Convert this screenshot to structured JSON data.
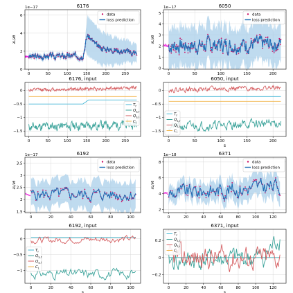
{
  "colors": {
    "data": "#cc1166",
    "data_pre": "#ee22dd",
    "prediction": "#1f6fb5",
    "band": "#a9cfea",
    "Tr": "#45b7d6",
    "Qs_r": "#3ba39a",
    "Qs_i": "#d55d60",
    "Ci": "#f2b64e"
  },
  "chart_data": [
    {
      "type": "line",
      "title": "6176",
      "xlabel": "",
      "ylabel": "∂L/∂θ",
      "scale_label": "1e−17",
      "xlim": [
        -10,
        290
      ],
      "ylim": [
        0,
        6.6
      ],
      "xticks": [
        0,
        50,
        100,
        150,
        200,
        250
      ],
      "yticks": [
        0,
        2,
        4,
        6
      ],
      "legend": {
        "position": "top-right",
        "entries": [
          "data",
          "loss prediction"
        ]
      },
      "grid": true,
      "profile": {
        "n": 280,
        "pre": 10,
        "segments": [
          [
            0,
            1.4
          ],
          [
            140,
            1.5
          ],
          [
            152,
            3.8
          ],
          [
            180,
            2.4
          ],
          [
            280,
            1.8
          ]
        ],
        "noise": 0.25,
        "band": [
          [
            0,
            0.3
          ],
          [
            145,
            0.3
          ],
          [
            152,
            2.2
          ],
          [
            280,
            1.0
          ]
        ],
        "seed": 3
      }
    },
    {
      "type": "line",
      "title": "6050",
      "xlabel": "",
      "ylabel": "∂L/∂θ",
      "scale_label": "1e−17",
      "xlim": [
        -10,
        225
      ],
      "ylim": [
        -0.1,
        5.3
      ],
      "xticks": [
        0,
        50,
        100,
        150,
        200
      ],
      "yticks": [
        0,
        1,
        2,
        3,
        4,
        5
      ],
      "legend": {
        "position": "top-right",
        "entries": [
          "data",
          "loss prediction"
        ]
      },
      "grid": true,
      "profile": {
        "n": 215,
        "pre": 12,
        "segments": [
          [
            0,
            2.0
          ],
          [
            215,
            2.2
          ]
        ],
        "noise": 0.55,
        "band": [
          [
            0,
            1.8
          ],
          [
            215,
            1.8
          ]
        ],
        "seed": 7
      }
    },
    {
      "type": "line",
      "title": "6176, input",
      "xlabel": "",
      "ylabel": "",
      "xlim": [
        -10,
        290
      ],
      "ylim": [
        -1.7,
        0.3
      ],
      "xticks": [
        0,
        50,
        100,
        150,
        200,
        250
      ],
      "yticks": [
        -1.5,
        -1.0,
        -0.5,
        0.0
      ],
      "legend": {
        "position": "center-right",
        "entries": [
          "T_r",
          "Q_{s,r}",
          "Q_{s,i}",
          "C_i"
        ]
      },
      "grid": true,
      "inputs": [
        {
          "name": "T_r",
          "segments": [
            [
              0,
              -0.5
            ],
            [
              140,
              -0.5
            ],
            [
              155,
              -0.35
            ],
            [
              280,
              -0.35
            ]
          ],
          "noise": 0.0,
          "seed": 1
        },
        {
          "name": "Q_{s,r}",
          "segments": [
            [
              0,
              -1.35
            ],
            [
              280,
              -1.25
            ]
          ],
          "noise": 0.13,
          "seed": 11
        },
        {
          "name": "Q_{s,i}",
          "segments": [
            [
              0,
              0.02
            ],
            [
              280,
              0.1
            ]
          ],
          "noise": 0.05,
          "seed": 12
        },
        {
          "name": "C_i",
          "segments": [
            [
              0,
              -0.22
            ],
            [
              280,
              -0.22
            ]
          ],
          "noise": 0.0,
          "seed": 13
        }
      ]
    },
    {
      "type": "line",
      "title": "6050, input",
      "xlabel": "s",
      "ylabel": "",
      "xlim": [
        -10,
        225
      ],
      "ylim": [
        -1.7,
        0.3
      ],
      "xticks": [
        0,
        50,
        100,
        150,
        200
      ],
      "yticks": [
        -1.5,
        -1.0,
        -0.5,
        0.0
      ],
      "legend": {
        "position": "bottom-left",
        "entries": [
          "T_r",
          "Q_{s,r}",
          "Q_{s,i}",
          "C_i"
        ]
      },
      "grid": true,
      "inputs": [
        {
          "name": "T_r",
          "segments": [
            [
              0,
              -0.22
            ],
            [
              215,
              -0.22
            ]
          ],
          "noise": 0.0,
          "seed": 2
        },
        {
          "name": "Q_{s,r}",
          "segments": [
            [
              0,
              -1.35
            ],
            [
              215,
              -1.2
            ]
          ],
          "noise": 0.13,
          "seed": 21
        },
        {
          "name": "Q_{s,i}",
          "segments": [
            [
              0,
              0.03
            ],
            [
              215,
              0.1
            ]
          ],
          "noise": 0.07,
          "seed": 22
        },
        {
          "name": "C_i",
          "segments": [
            [
              0,
              -0.4
            ],
            [
              215,
              -0.4
            ]
          ],
          "noise": 0.0,
          "seed": 23
        }
      ]
    },
    {
      "type": "line",
      "title": "6192",
      "xlabel": "",
      "ylabel": "∂L/∂θ",
      "scale_label": "1e−17",
      "xlim": [
        -6,
        110
      ],
      "ylim": [
        1.45,
        3.75
      ],
      "xticks": [
        0,
        20,
        40,
        60,
        80,
        100
      ],
      "yticks": [
        1.5,
        2.0,
        2.5,
        3.0,
        3.5
      ],
      "legend": {
        "position": "top-right",
        "entries": [
          "data",
          "loss prediction"
        ]
      },
      "grid": true,
      "profile": {
        "n": 105,
        "pre": 8,
        "segments": [
          [
            0,
            2.2
          ],
          [
            105,
            2.2
          ]
        ],
        "noise": 0.2,
        "band": [
          [
            0,
            0.55
          ],
          [
            105,
            0.6
          ]
        ],
        "seed": 5
      }
    },
    {
      "type": "line",
      "title": "6371",
      "xlabel": "",
      "ylabel": "∂L/∂θ",
      "scale_label": "1e−18",
      "xlim": [
        -6,
        135
      ],
      "ylim": [
        1.6,
        8.6
      ],
      "xticks": [
        0,
        20,
        40,
        60,
        80,
        100,
        120
      ],
      "yticks": [
        2,
        4,
        6,
        8
      ],
      "legend": {
        "position": "top-right",
        "entries": [
          "data",
          "loss prediction"
        ]
      },
      "grid": true,
      "profile": {
        "n": 128,
        "pre": 8,
        "segments": [
          [
            0,
            4.0
          ],
          [
            128,
            5.0
          ]
        ],
        "noise": 0.8,
        "band": [
          [
            0,
            1.0
          ],
          [
            128,
            1.6
          ]
        ],
        "seed": 9
      }
    },
    {
      "type": "line",
      "title": "6192, input",
      "xlabel": "s",
      "ylabel": "",
      "xlim": [
        -6,
        110
      ],
      "ylim": [
        -1.4,
        0.3
      ],
      "xticks": [
        0,
        20,
        40,
        60,
        80,
        100
      ],
      "yticks": [
        -1.0,
        -0.5,
        0.0
      ],
      "legend": {
        "position": "center-left",
        "entries": [
          "T_r",
          "Q_{s,r}",
          "Q_{s,i}",
          "C_i"
        ]
      },
      "grid": true,
      "inputs": [
        {
          "name": "T_r",
          "segments": [
            [
              0,
              0.05
            ],
            [
              105,
              0.05
            ]
          ],
          "noise": 0.0,
          "seed": 3
        },
        {
          "name": "Q_{s,r}",
          "segments": [
            [
              0,
              -1.1
            ],
            [
              105,
              -1.1
            ]
          ],
          "noise": 0.12,
          "seed": 31
        },
        {
          "name": "Q_{s,i}",
          "segments": [
            [
              0,
              -0.05
            ],
            [
              105,
              0.0
            ]
          ],
          "noise": 0.08,
          "seed": 32
        },
        {
          "name": "C_i",
          "segments": [
            [
              0,
              0.05
            ],
            [
              105,
              0.05
            ]
          ],
          "noise": 0.0,
          "seed": 33
        }
      ]
    },
    {
      "type": "line",
      "title": "6371, input",
      "xlabel": "s",
      "ylabel": "",
      "xlim": [
        -6,
        135
      ],
      "ylim": [
        -0.3,
        0.33
      ],
      "xticks": [
        0,
        20,
        40,
        60,
        80,
        100,
        120
      ],
      "yticks": [
        -0.2,
        0.0,
        0.2
      ],
      "legend": {
        "position": "top-left",
        "entries": [
          "T_r",
          "Q_{s,r}",
          "Q_{s,i}",
          "C_i"
        ]
      },
      "grid": true,
      "inputs": [
        {
          "name": "T_r",
          "segments": [
            [
              0,
              0.0
            ],
            [
              128,
              0.0
            ]
          ],
          "noise": 0.0,
          "seed": 4
        },
        {
          "name": "Q_{s,r}",
          "segments": [
            [
              0,
              -0.05
            ],
            [
              110,
              0.0
            ],
            [
              128,
              0.25
            ]
          ],
          "noise": 0.1,
          "seed": 41
        },
        {
          "name": "Q_{s,i}",
          "segments": [
            [
              0,
              0.0
            ],
            [
              128,
              0.0
            ]
          ],
          "noise": 0.11,
          "seed": 42
        },
        {
          "name": "C_i",
          "segments": [
            [
              0,
              0.0
            ],
            [
              128,
              0.0
            ]
          ],
          "noise": 0.0,
          "seed": 43
        }
      ]
    }
  ]
}
